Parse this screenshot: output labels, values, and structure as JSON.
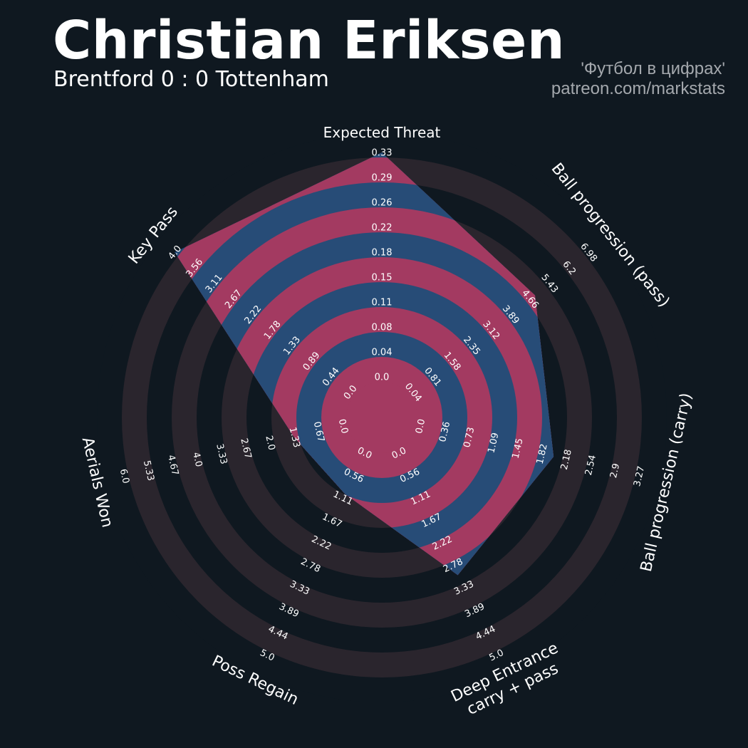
{
  "header": {
    "title": "Christian Eriksen",
    "subtitle": "Brentford 0 : 0 Tottenham",
    "credit_line1": "'Футбол в цифрах'",
    "credit_line2": "patreon.com/markstats"
  },
  "colors": {
    "background": "#0f1820",
    "ring_band": "#2a252d",
    "ring_band_alt": "#0f1820",
    "player_fill": "#274c77",
    "player_ring": "#a33a61",
    "text": "#ffffff",
    "credit": "#a4a8ad"
  },
  "chart_data": {
    "type": "radar",
    "title": "Christian Eriksen",
    "subtitle": "Brentford 0 : 0 Tottenham",
    "axes": [
      {
        "label": "Expected Threat",
        "ticks": [
          "0.0",
          "0.04",
          "0.08",
          "0.11",
          "0.15",
          "0.18",
          "0.22",
          "0.26",
          "0.29",
          "0.33"
        ],
        "min": 0,
        "max": 0.33,
        "value": 0.33
      },
      {
        "label": "Ball progression (pass)",
        "ticks": [
          "0.04",
          "0.81",
          "1.58",
          "2.35",
          "3.12",
          "3.89",
          "4.66",
          "5.43",
          "6.2",
          "6.98"
        ],
        "min": 0.04,
        "max": 6.98,
        "value": 4.85
      },
      {
        "label": "Ball progression (carry)",
        "ticks": [
          "0.0",
          "0.36",
          "0.73",
          "1.09",
          "1.45",
          "1.82",
          "2.18",
          "2.54",
          "2.9",
          "3.27"
        ],
        "min": 0,
        "max": 3.27,
        "value": 1.98
      },
      {
        "label": "Deep Entrance\ncarry + pass",
        "ticks": [
          "0.0",
          "0.56",
          "1.11",
          "1.67",
          "2.22",
          "2.78",
          "3.33",
          "3.89",
          "4.44",
          "5.0"
        ],
        "min": 0,
        "max": 5.0,
        "value": 3.0
      },
      {
        "label": "Poss Regain",
        "ticks": [
          "0.0",
          "0.56",
          "1.11",
          "1.67",
          "2.22",
          "2.78",
          "3.33",
          "3.89",
          "4.44",
          "5.0"
        ],
        "min": 0,
        "max": 5.0,
        "value": 1.0
      },
      {
        "label": "Aerials Won",
        "ticks": [
          "0.0",
          "0.67",
          "1.33",
          "2.0",
          "2.67",
          "3.33",
          "4.0",
          "4.67",
          "5.33",
          "6.0"
        ],
        "min": 0,
        "max": 6.0,
        "value": 1.33
      },
      {
        "label": "Key Pass",
        "ticks": [
          "0.0",
          "0.44",
          "0.89",
          "1.33",
          "1.78",
          "2.22",
          "2.67",
          "3.11",
          "3.56",
          "4.0"
        ],
        "min": 0,
        "max": 4.0,
        "value": 4.0
      }
    ],
    "grid": true
  }
}
